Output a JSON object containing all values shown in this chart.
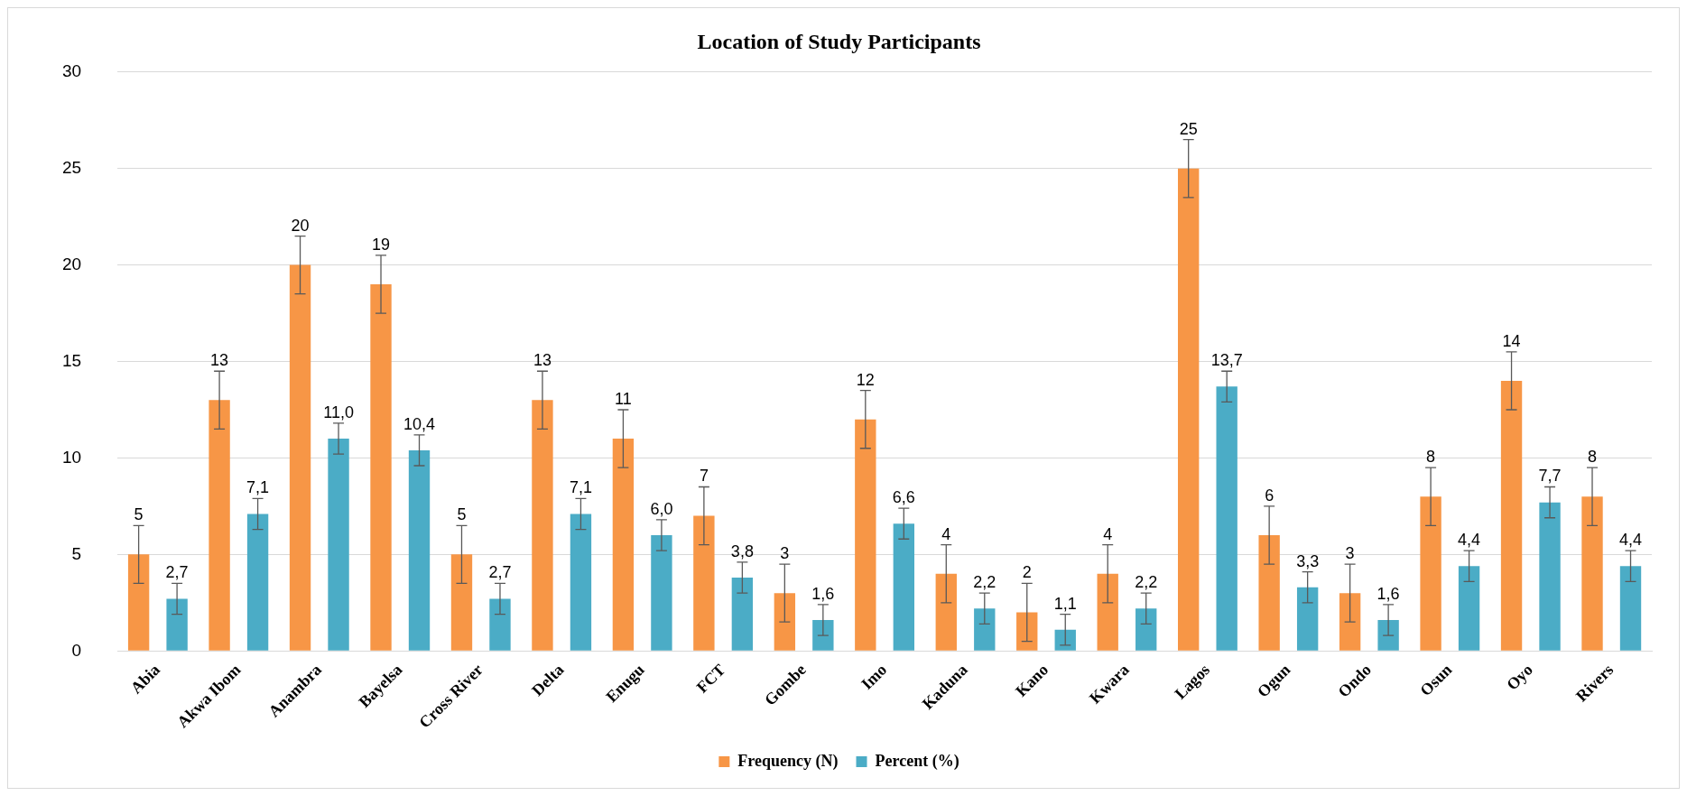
{
  "chart_data": {
    "type": "bar",
    "title": "Location of Study Participants",
    "categories": [
      "Abia",
      "Akwa Ibom",
      "Anambra",
      "Bayelsa",
      "Cross River",
      "Delta",
      "Enugu",
      "FCT",
      "Gombe",
      "Imo",
      "Kaduna",
      "Kano",
      "Kwara",
      "Lagos",
      "Ogun",
      "Ondo",
      "Osun",
      "Oyo",
      "Rivers"
    ],
    "series": [
      {
        "name": "Frequency (N)",
        "color": "#f79646",
        "values": [
          5,
          13,
          20,
          19,
          5,
          13,
          11,
          7,
          3,
          12,
          4,
          2,
          4,
          25,
          6,
          3,
          8,
          14,
          8
        ],
        "errors": [
          1.5,
          1.5,
          1.5,
          1.5,
          1.5,
          1.5,
          1.5,
          1.5,
          1.5,
          1.5,
          1.5,
          1.5,
          1.5,
          1.5,
          1.5,
          1.5,
          1.5,
          1.5,
          1.5
        ],
        "value_labels": [
          "5",
          "13",
          "20",
          "19",
          "5",
          "13",
          "11",
          "7",
          "3",
          "12",
          "4",
          "2",
          "4",
          "25",
          "6",
          "3",
          "8",
          "14",
          "8"
        ]
      },
      {
        "name": "Percent (%)",
        "color": "#4bacc6",
        "values": [
          2.7,
          7.1,
          11.0,
          10.4,
          2.7,
          7.1,
          6.0,
          3.8,
          1.6,
          6.6,
          2.2,
          1.1,
          2.2,
          13.7,
          3.3,
          1.6,
          4.4,
          7.7,
          4.4
        ],
        "errors": [
          0.8,
          0.8,
          0.8,
          0.8,
          0.8,
          0.8,
          0.8,
          0.8,
          0.8,
          0.8,
          0.8,
          0.8,
          0.8,
          0.8,
          0.8,
          0.8,
          0.8,
          0.8,
          0.8
        ],
        "value_labels": [
          "2,7",
          "7,1",
          "11,0",
          "10,4",
          "2,7",
          "7,1",
          "6,0",
          "3,8",
          "1,6",
          "6,6",
          "2,2",
          "1,1",
          "2,2",
          "13,7",
          "3,3",
          "1,6",
          "4,4",
          "7,7",
          "4,4"
        ]
      }
    ],
    "ylim": [
      0,
      30
    ],
    "yticks": [
      0,
      5,
      10,
      15,
      20,
      25,
      30
    ],
    "grid": "y",
    "legend": "bottom"
  }
}
